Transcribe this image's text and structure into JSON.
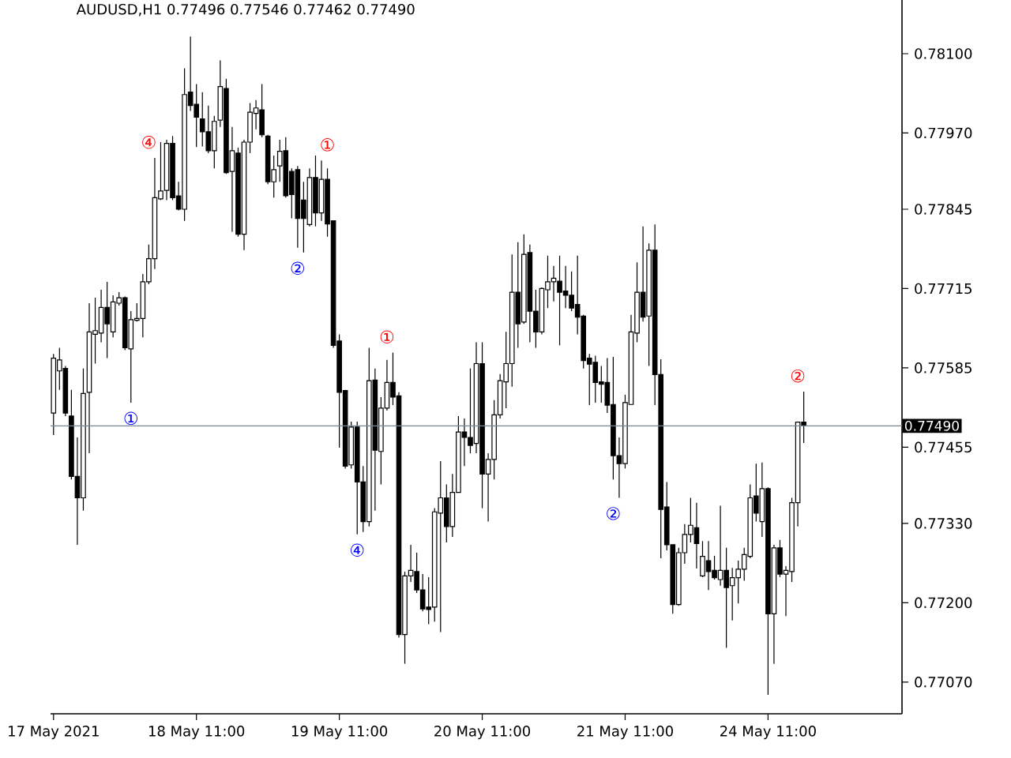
{
  "chart_data": {
    "type": "candlestick",
    "title": "AUDUSD,H1 0.77496 0.77546 0.77462 0.77490",
    "color": "#000000",
    "categories": [
      "17 May 2021",
      null,
      null,
      null,
      null,
      null,
      null,
      null,
      null,
      null,
      null,
      null,
      null,
      null,
      null,
      null,
      null,
      null,
      null,
      null,
      null,
      null,
      null,
      null,
      "18 May 11:00",
      null,
      null,
      null,
      null,
      null,
      null,
      null,
      null,
      null,
      null,
      null,
      null,
      null,
      null,
      null,
      null,
      null,
      null,
      null,
      null,
      null,
      null,
      null,
      "19 May 11:00",
      null,
      null,
      null,
      null,
      null,
      null,
      null,
      null,
      null,
      null,
      null,
      null,
      null,
      null,
      null,
      null,
      null,
      null,
      null,
      null,
      null,
      null,
      null,
      "20 May 11:00",
      null,
      null,
      null,
      null,
      null,
      null,
      null,
      null,
      null,
      null,
      null,
      null,
      null,
      null,
      null,
      null,
      null,
      null,
      null,
      null,
      null,
      null,
      null,
      "21 May 11:00",
      null,
      null,
      null,
      null,
      null,
      null,
      null,
      null,
      null,
      null,
      null,
      null,
      null,
      null,
      null,
      null,
      null,
      null,
      null,
      null,
      null,
      null,
      null,
      "24 May 11:00",
      null,
      null,
      null,
      null,
      null,
      null,
      null,
      null,
      null,
      null,
      null,
      null,
      null,
      null,
      null,
      null,
      null,
      null,
      null,
      null,
      null,
      null
    ],
    "ohlc": [
      [
        0.77511,
        0.77608,
        0.77475,
        0.77601
      ],
      [
        0.7758,
        0.77618,
        0.77549,
        0.77598
      ],
      [
        0.77584,
        0.77588,
        0.77506,
        0.77511
      ],
      [
        0.77506,
        0.77549,
        0.77402,
        0.77407
      ],
      [
        0.77407,
        0.77471,
        0.77295,
        0.77372
      ],
      [
        0.77372,
        0.77584,
        0.77351,
        0.77543
      ],
      [
        0.77545,
        0.77691,
        0.77445,
        0.77644
      ],
      [
        0.7764,
        0.777,
        0.77592,
        0.77646
      ],
      [
        0.77642,
        0.77713,
        0.77627,
        0.77684
      ],
      [
        0.77684,
        0.77726,
        0.77601,
        0.77657
      ],
      [
        0.77644,
        0.77704,
        0.77635,
        0.77693
      ],
      [
        0.77691,
        0.77709,
        0.77687,
        0.777
      ],
      [
        0.777,
        0.77702,
        0.77614,
        0.77618
      ],
      [
        0.77616,
        0.77678,
        0.77528,
        0.77664
      ],
      [
        0.77663,
        0.77691,
        0.77661,
        0.77666
      ],
      [
        0.77666,
        0.77739,
        0.77635,
        0.77726
      ],
      [
        0.77726,
        0.77787,
        0.77722,
        0.77764
      ],
      [
        0.77764,
        0.77929,
        0.77747,
        0.77864
      ],
      [
        0.77862,
        0.77955,
        0.7786,
        0.77875
      ],
      [
        0.77876,
        0.77959,
        0.7786,
        0.77953
      ],
      [
        0.77953,
        0.77965,
        0.7786,
        0.77864
      ],
      [
        0.77867,
        0.7789,
        0.77843,
        0.77845
      ],
      [
        0.77845,
        0.78076,
        0.77826,
        0.78033
      ],
      [
        0.78037,
        0.78128,
        0.78006,
        0.78015
      ],
      [
        0.78017,
        0.7805,
        0.77947,
        0.77996
      ],
      [
        0.77993,
        0.78037,
        0.77948,
        0.77972
      ],
      [
        0.77972,
        0.78015,
        0.77937,
        0.77941
      ],
      [
        0.77941,
        0.77998,
        0.77912,
        0.77989
      ],
      [
        0.77991,
        0.78089,
        0.7798,
        0.78046
      ],
      [
        0.78043,
        0.78059,
        0.77903,
        0.77905
      ],
      [
        0.77907,
        0.7798,
        0.77808,
        0.77941
      ],
      [
        0.77937,
        0.77946,
        0.778,
        0.77804
      ],
      [
        0.77804,
        0.77959,
        0.77778,
        0.77955
      ],
      [
        0.77955,
        0.78019,
        0.77937,
        0.78004
      ],
      [
        0.78002,
        0.78024,
        0.77976,
        0.78011
      ],
      [
        0.78008,
        0.7805,
        0.77963,
        0.77967
      ],
      [
        0.77965,
        0.77967,
        0.77886,
        0.7789
      ],
      [
        0.7789,
        0.77933,
        0.77864,
        0.7791
      ],
      [
        0.77916,
        0.77959,
        0.7789,
        0.7794
      ],
      [
        0.77941,
        0.77963,
        0.77864,
        0.77867
      ],
      [
        0.77907,
        0.77912,
        0.7783,
        0.77869
      ],
      [
        0.7791,
        0.77916,
        0.77782,
        0.7783
      ],
      [
        0.7786,
        0.7789,
        0.77774,
        0.7783
      ],
      [
        0.7782,
        0.77912,
        0.77817,
        0.77897
      ],
      [
        0.77897,
        0.77933,
        0.77817,
        0.77839
      ],
      [
        0.77839,
        0.77925,
        0.77826,
        0.77894
      ],
      [
        0.77894,
        0.77912,
        0.778,
        0.77821
      ],
      [
        0.77826,
        0.77826,
        0.77618,
        0.77622
      ],
      [
        0.77629,
        0.7764,
        0.77454,
        0.77545
      ],
      [
        0.77548,
        0.77549,
        0.7742,
        0.77424
      ],
      [
        0.77426,
        0.77497,
        0.7742,
        0.77488
      ],
      [
        0.77488,
        0.77497,
        0.77312,
        0.77398
      ],
      [
        0.77398,
        0.77424,
        0.77316,
        0.77333
      ],
      [
        0.77333,
        0.77618,
        0.77325,
        0.77564
      ],
      [
        0.77565,
        0.77584,
        0.77351,
        0.7745
      ],
      [
        0.77448,
        0.77537,
        0.77394,
        0.77519
      ],
      [
        0.77519,
        0.77598,
        0.77515,
        0.77561
      ],
      [
        0.77561,
        0.7761,
        0.77524,
        0.77537
      ],
      [
        0.77539,
        0.77545,
        0.77143,
        0.77148
      ],
      [
        0.77148,
        0.77251,
        0.771,
        0.77244
      ],
      [
        0.77244,
        0.77295,
        0.77234,
        0.77253
      ],
      [
        0.77251,
        0.77282,
        0.77216,
        0.77221
      ],
      [
        0.77221,
        0.77247,
        0.77186,
        0.7719
      ],
      [
        0.77193,
        0.77242,
        0.77165,
        0.77189
      ],
      [
        0.77193,
        0.77355,
        0.77169,
        0.77349
      ],
      [
        0.77347,
        0.77432,
        0.77152,
        0.77372
      ],
      [
        0.77372,
        0.77394,
        0.77299,
        0.77325
      ],
      [
        0.77325,
        0.77411,
        0.77308,
        0.77381
      ],
      [
        0.77381,
        0.77506,
        0.77381,
        0.7748
      ],
      [
        0.7748,
        0.77502,
        0.77424,
        0.77471
      ],
      [
        0.77471,
        0.77584,
        0.77445,
        0.77458
      ],
      [
        0.77461,
        0.77627,
        0.77445,
        0.77592
      ],
      [
        0.77592,
        0.77627,
        0.77355,
        0.77411
      ],
      [
        0.77411,
        0.77445,
        0.77333,
        0.77435
      ],
      [
        0.77435,
        0.77532,
        0.77402,
        0.77508
      ],
      [
        0.77508,
        0.77575,
        0.77502,
        0.77564
      ],
      [
        0.77562,
        0.77644,
        0.77519,
        0.77592
      ],
      [
        0.77592,
        0.77771,
        0.77554,
        0.77709
      ],
      [
        0.77709,
        0.77791,
        0.77618,
        0.77657
      ],
      [
        0.7766,
        0.77804,
        0.77657,
        0.77771
      ],
      [
        0.77774,
        0.77787,
        0.77627,
        0.77678
      ],
      [
        0.77678,
        0.77713,
        0.77618,
        0.77644
      ],
      [
        0.77644,
        0.77717,
        0.7764,
        0.77715
      ],
      [
        0.77713,
        0.77769,
        0.77683,
        0.77726
      ],
      [
        0.77726,
        0.77752,
        0.77694,
        0.77732
      ],
      [
        0.77727,
        0.77769,
        0.77622,
        0.77709
      ],
      [
        0.77711,
        0.77752,
        0.77683,
        0.77704
      ],
      [
        0.77704,
        0.77743,
        0.77678,
        0.77683
      ],
      [
        0.77689,
        0.77769,
        0.7764,
        0.77668
      ],
      [
        0.7767,
        0.77672,
        0.77584,
        0.77597
      ],
      [
        0.77601,
        0.77608,
        0.77524,
        0.77591
      ],
      [
        0.77594,
        0.77605,
        0.77528,
        0.77561
      ],
      [
        0.77562,
        0.77588,
        0.77528,
        0.77558
      ],
      [
        0.77561,
        0.77601,
        0.77511,
        0.77524
      ],
      [
        0.77525,
        0.77603,
        0.77402,
        0.77441
      ],
      [
        0.77441,
        0.77471,
        0.77372,
        0.77428
      ],
      [
        0.77428,
        0.77541,
        0.7742,
        0.77528
      ],
      [
        0.77525,
        0.77672,
        0.77524,
        0.77644
      ],
      [
        0.77642,
        0.77758,
        0.77627,
        0.77709
      ],
      [
        0.77709,
        0.77817,
        0.77661,
        0.77668
      ],
      [
        0.7767,
        0.77789,
        0.77588,
        0.77778
      ],
      [
        0.77778,
        0.7782,
        0.77524,
        0.77574
      ],
      [
        0.77574,
        0.77599,
        0.77273,
        0.77353
      ],
      [
        0.77357,
        0.77398,
        0.77286,
        0.77295
      ],
      [
        0.77295,
        0.77295,
        0.77182,
        0.77197
      ],
      [
        0.77197,
        0.7729,
        0.77195,
        0.77282
      ],
      [
        0.77282,
        0.77329,
        0.77264,
        0.77312
      ],
      [
        0.77312,
        0.77372,
        0.77299,
        0.77327
      ],
      [
        0.77323,
        0.77364,
        0.77256,
        0.77297
      ],
      [
        0.77244,
        0.77301,
        0.77242,
        0.77276
      ],
      [
        0.77269,
        0.77301,
        0.77221,
        0.77251
      ],
      [
        0.77253,
        0.77277,
        0.77238,
        0.77241
      ],
      [
        0.77238,
        0.77359,
        0.77228,
        0.77253
      ],
      [
        0.77253,
        0.7729,
        0.77126,
        0.77225
      ],
      [
        0.77228,
        0.77257,
        0.77171,
        0.77241
      ],
      [
        0.77241,
        0.77269,
        0.77199,
        0.77255
      ],
      [
        0.77255,
        0.7729,
        0.77236,
        0.77279
      ],
      [
        0.77276,
        0.77394,
        0.77273,
        0.77372
      ],
      [
        0.77375,
        0.77428,
        0.77333,
        0.77347
      ],
      [
        0.77333,
        0.7743,
        0.77308,
        0.77387
      ],
      [
        0.77387,
        0.77389,
        0.77049,
        0.77182
      ],
      [
        0.77182,
        0.77295,
        0.771,
        0.7729
      ],
      [
        0.7729,
        0.77303,
        0.77242,
        0.77247
      ],
      [
        0.77247,
        0.7726,
        0.77178,
        0.77253
      ],
      [
        0.77251,
        0.77372,
        0.77234,
        0.77364
      ],
      [
        0.77364,
        0.77497,
        0.77325,
        0.77496
      ],
      [
        0.77496,
        0.77546,
        0.77462,
        0.7749
      ],
      null,
      null,
      null,
      null,
      null,
      null,
      null,
      null,
      null,
      null,
      null,
      null,
      null,
      null,
      null,
      null
    ],
    "ylim": [
      0.77018,
      0.78188
    ],
    "yticks": [
      {
        "value": 0.781,
        "label": "0.78100"
      },
      {
        "value": 0.7797,
        "label": "0.77970"
      },
      {
        "value": 0.77845,
        "label": "0.77845"
      },
      {
        "value": 0.77715,
        "label": "0.77715"
      },
      {
        "value": 0.77585,
        "label": "0.77585"
      },
      {
        "value": 0.77455,
        "label": "0.77455"
      },
      {
        "value": 0.7733,
        "label": "0.77330"
      },
      {
        "value": 0.772,
        "label": "0.77200"
      },
      {
        "value": 0.7707,
        "label": "0.77070"
      }
    ],
    "ref_lines": [
      {
        "axis": "y",
        "value": 0.7749,
        "label": "0.77490",
        "color": "#778899"
      }
    ],
    "annotations": [
      "④",
      "①",
      "②",
      "①",
      "④",
      "①",
      "②",
      "②"
    ]
  }
}
